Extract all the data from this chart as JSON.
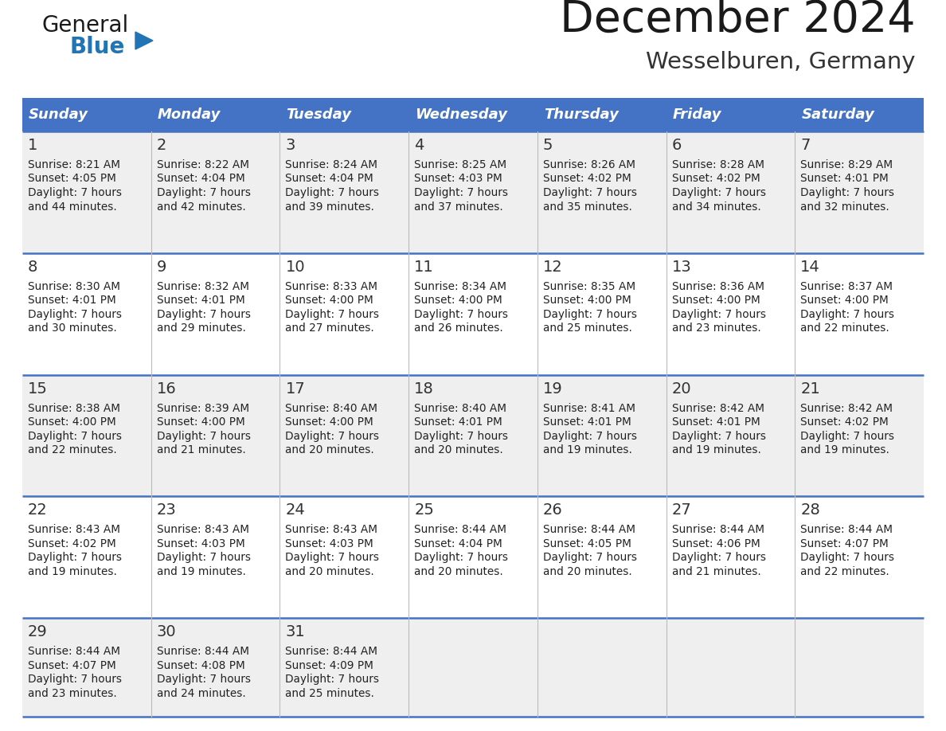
{
  "title": "December 2024",
  "subtitle": "Wesselburen, Germany",
  "header_bg": "#4472C4",
  "header_text_color": "#FFFFFF",
  "row_bg_odd": "#EFEFEF",
  "row_bg_even": "#FFFFFF",
  "border_color": "#4472C4",
  "cell_line_color": "#BBBBBB",
  "days_of_week": [
    "Sunday",
    "Monday",
    "Tuesday",
    "Wednesday",
    "Thursday",
    "Friday",
    "Saturday"
  ],
  "calendar": [
    [
      {
        "day": "1",
        "sunrise": "8:21 AM",
        "sunset": "4:05 PM",
        "daylight_h": "7 hours",
        "daylight_m": "44 minutes."
      },
      {
        "day": "2",
        "sunrise": "8:22 AM",
        "sunset": "4:04 PM",
        "daylight_h": "7 hours",
        "daylight_m": "42 minutes."
      },
      {
        "day": "3",
        "sunrise": "8:24 AM",
        "sunset": "4:04 PM",
        "daylight_h": "7 hours",
        "daylight_m": "39 minutes."
      },
      {
        "day": "4",
        "sunrise": "8:25 AM",
        "sunset": "4:03 PM",
        "daylight_h": "7 hours",
        "daylight_m": "37 minutes."
      },
      {
        "day": "5",
        "sunrise": "8:26 AM",
        "sunset": "4:02 PM",
        "daylight_h": "7 hours",
        "daylight_m": "35 minutes."
      },
      {
        "day": "6",
        "sunrise": "8:28 AM",
        "sunset": "4:02 PM",
        "daylight_h": "7 hours",
        "daylight_m": "34 minutes."
      },
      {
        "day": "7",
        "sunrise": "8:29 AM",
        "sunset": "4:01 PM",
        "daylight_h": "7 hours",
        "daylight_m": "32 minutes."
      }
    ],
    [
      {
        "day": "8",
        "sunrise": "8:30 AM",
        "sunset": "4:01 PM",
        "daylight_h": "7 hours",
        "daylight_m": "30 minutes."
      },
      {
        "day": "9",
        "sunrise": "8:32 AM",
        "sunset": "4:01 PM",
        "daylight_h": "7 hours",
        "daylight_m": "29 minutes."
      },
      {
        "day": "10",
        "sunrise": "8:33 AM",
        "sunset": "4:00 PM",
        "daylight_h": "7 hours",
        "daylight_m": "27 minutes."
      },
      {
        "day": "11",
        "sunrise": "8:34 AM",
        "sunset": "4:00 PM",
        "daylight_h": "7 hours",
        "daylight_m": "26 minutes."
      },
      {
        "day": "12",
        "sunrise": "8:35 AM",
        "sunset": "4:00 PM",
        "daylight_h": "7 hours",
        "daylight_m": "25 minutes."
      },
      {
        "day": "13",
        "sunrise": "8:36 AM",
        "sunset": "4:00 PM",
        "daylight_h": "7 hours",
        "daylight_m": "23 minutes."
      },
      {
        "day": "14",
        "sunrise": "8:37 AM",
        "sunset": "4:00 PM",
        "daylight_h": "7 hours",
        "daylight_m": "22 minutes."
      }
    ],
    [
      {
        "day": "15",
        "sunrise": "8:38 AM",
        "sunset": "4:00 PM",
        "daylight_h": "7 hours",
        "daylight_m": "22 minutes."
      },
      {
        "day": "16",
        "sunrise": "8:39 AM",
        "sunset": "4:00 PM",
        "daylight_h": "7 hours",
        "daylight_m": "21 minutes."
      },
      {
        "day": "17",
        "sunrise": "8:40 AM",
        "sunset": "4:00 PM",
        "daylight_h": "7 hours",
        "daylight_m": "20 minutes."
      },
      {
        "day": "18",
        "sunrise": "8:40 AM",
        "sunset": "4:01 PM",
        "daylight_h": "7 hours",
        "daylight_m": "20 minutes."
      },
      {
        "day": "19",
        "sunrise": "8:41 AM",
        "sunset": "4:01 PM",
        "daylight_h": "7 hours",
        "daylight_m": "19 minutes."
      },
      {
        "day": "20",
        "sunrise": "8:42 AM",
        "sunset": "4:01 PM",
        "daylight_h": "7 hours",
        "daylight_m": "19 minutes."
      },
      {
        "day": "21",
        "sunrise": "8:42 AM",
        "sunset": "4:02 PM",
        "daylight_h": "7 hours",
        "daylight_m": "19 minutes."
      }
    ],
    [
      {
        "day": "22",
        "sunrise": "8:43 AM",
        "sunset": "4:02 PM",
        "daylight_h": "7 hours",
        "daylight_m": "19 minutes."
      },
      {
        "day": "23",
        "sunrise": "8:43 AM",
        "sunset": "4:03 PM",
        "daylight_h": "7 hours",
        "daylight_m": "19 minutes."
      },
      {
        "day": "24",
        "sunrise": "8:43 AM",
        "sunset": "4:03 PM",
        "daylight_h": "7 hours",
        "daylight_m": "20 minutes."
      },
      {
        "day": "25",
        "sunrise": "8:44 AM",
        "sunset": "4:04 PM",
        "daylight_h": "7 hours",
        "daylight_m": "20 minutes."
      },
      {
        "day": "26",
        "sunrise": "8:44 AM",
        "sunset": "4:05 PM",
        "daylight_h": "7 hours",
        "daylight_m": "20 minutes."
      },
      {
        "day": "27",
        "sunrise": "8:44 AM",
        "sunset": "4:06 PM",
        "daylight_h": "7 hours",
        "daylight_m": "21 minutes."
      },
      {
        "day": "28",
        "sunrise": "8:44 AM",
        "sunset": "4:07 PM",
        "daylight_h": "7 hours",
        "daylight_m": "22 minutes."
      }
    ],
    [
      {
        "day": "29",
        "sunrise": "8:44 AM",
        "sunset": "4:07 PM",
        "daylight_h": "7 hours",
        "daylight_m": "23 minutes."
      },
      {
        "day": "30",
        "sunrise": "8:44 AM",
        "sunset": "4:08 PM",
        "daylight_h": "7 hours",
        "daylight_m": "24 minutes."
      },
      {
        "day": "31",
        "sunrise": "8:44 AM",
        "sunset": "4:09 PM",
        "daylight_h": "7 hours",
        "daylight_m": "25 minutes."
      },
      null,
      null,
      null,
      null
    ]
  ],
  "logo_general_color": "#1a1a1a",
  "logo_blue_color": "#2175B5",
  "triangle_color": "#2175B5",
  "title_color": "#1a1a1a",
  "subtitle_color": "#333333"
}
